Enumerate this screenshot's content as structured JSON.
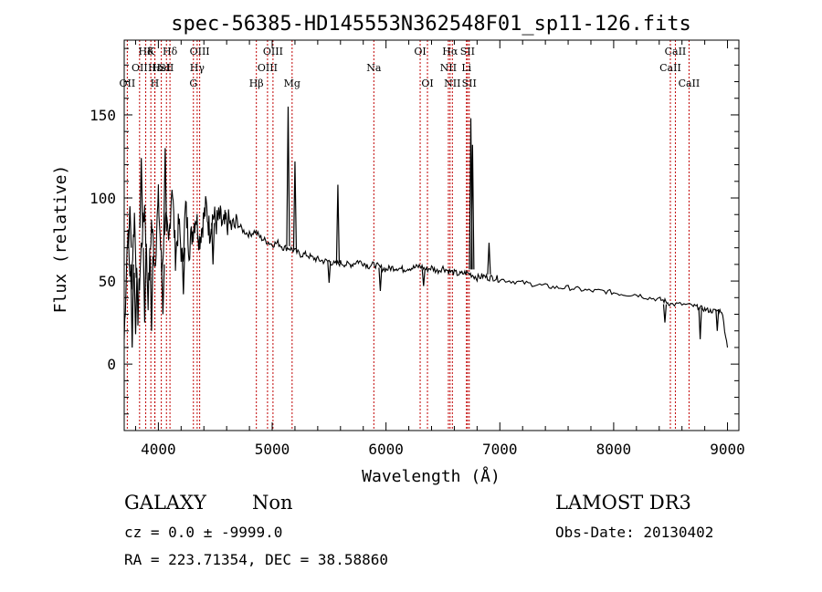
{
  "chart_data": {
    "type": "line",
    "title": "spec-56385-HD145553N362548F01_sp11-126.fits",
    "xlabel": "Wavelength (Å)",
    "ylabel": "Flux (relative)",
    "xlim": [
      3700,
      9100
    ],
    "ylim": [
      -40,
      195
    ],
    "xticks": [
      4000,
      5000,
      6000,
      7000,
      8000,
      9000
    ],
    "yticks": [
      0,
      50,
      100,
      150
    ],
    "grid": false,
    "series": [
      {
        "name": "flux",
        "x": [
          3700,
          3730,
          3760,
          3790,
          3820,
          3850,
          3880,
          3910,
          3940,
          3970,
          4000,
          4030,
          4060,
          4090,
          4120,
          4150,
          4180,
          4210,
          4240,
          4270,
          4300,
          4330,
          4360,
          4390,
          4420,
          4450,
          4480,
          4510,
          4540,
          4570,
          4600,
          4650,
          4700,
          4750,
          4800,
          4850,
          4900,
          4950,
          5000,
          5050,
          5100,
          5150,
          5200,
          5250,
          5300,
          5350,
          5400,
          5450,
          5500,
          5550,
          5600,
          5650,
          5700,
          5750,
          5800,
          5850,
          5900,
          5950,
          6000,
          6050,
          6100,
          6150,
          6200,
          6250,
          6300,
          6350,
          6400,
          6450,
          6500,
          6550,
          6600,
          6650,
          6700,
          6750,
          6800,
          6850,
          6900,
          6950,
          7000,
          7100,
          7200,
          7300,
          7400,
          7500,
          7600,
          7700,
          7800,
          7900,
          8000,
          8100,
          8200,
          8300,
          8400,
          8450,
          8500,
          8600,
          8700,
          8750,
          8800,
          8850,
          8900,
          8950,
          9000
        ],
        "values": [
          15,
          80,
          45,
          90,
          30,
          70,
          95,
          40,
          85,
          60,
          100,
          55,
          90,
          70,
          110,
          65,
          85,
          60,
          95,
          70,
          80,
          90,
          75,
          85,
          95,
          80,
          90,
          85,
          88,
          82,
          86,
          82,
          84,
          80,
          78,
          80,
          76,
          74,
          72,
          73,
          70,
          70,
          68,
          66,
          66,
          64,
          63,
          62,
          62,
          60,
          61,
          60,
          60,
          62,
          61,
          59,
          60,
          58,
          57,
          58,
          58,
          57,
          58,
          58,
          59,
          57,
          58,
          56,
          58,
          56,
          55,
          54,
          55,
          54,
          52,
          53,
          52,
          52,
          51,
          50,
          49,
          48,
          47,
          46,
          46,
          45,
          44,
          44,
          43,
          42,
          42,
          40,
          39,
          38,
          36,
          36,
          35,
          34,
          33,
          32,
          32,
          32,
          10
        ]
      }
    ],
    "spikes": [
      {
        "x": 3750,
        "peak": 95,
        "base": 70
      },
      {
        "x": 3850,
        "peak": 124,
        "base": 82
      },
      {
        "x": 4060,
        "peak": 130,
        "base": 80
      },
      {
        "x": 5140,
        "peak": 155,
        "base": 71
      },
      {
        "x": 5200,
        "peak": 122,
        "base": 69
      },
      {
        "x": 5577,
        "peak": 108,
        "base": 61
      },
      {
        "x": 6745,
        "peak": 148,
        "base": 57
      },
      {
        "x": 6760,
        "peak": 132,
        "base": 57
      },
      {
        "x": 6905,
        "peak": 73,
        "base": 54
      }
    ],
    "dips": [
      {
        "x": 3770,
        "low": 10,
        "base": 60
      },
      {
        "x": 3800,
        "low": 18,
        "base": 55
      },
      {
        "x": 3880,
        "low": 25,
        "base": 70
      },
      {
        "x": 3940,
        "low": 20,
        "base": 65
      },
      {
        "x": 4040,
        "low": 30,
        "base": 60
      },
      {
        "x": 4220,
        "low": 42,
        "base": 70
      },
      {
        "x": 4480,
        "low": 60,
        "base": 85
      },
      {
        "x": 5500,
        "low": 49,
        "base": 62
      },
      {
        "x": 5950,
        "low": 44,
        "base": 58
      },
      {
        "x": 6330,
        "low": 47,
        "base": 57
      },
      {
        "x": 8450,
        "low": 25,
        "base": 36
      },
      {
        "x": 8760,
        "low": 15,
        "base": 34
      },
      {
        "x": 8910,
        "low": 20,
        "base": 33
      }
    ],
    "lines": [
      {
        "x": 3727,
        "label": "OII",
        "row": 2
      },
      {
        "x": 3835,
        "label": "OII",
        "row": 1
      },
      {
        "x": 3889,
        "label": "Hδ",
        "row": 0
      },
      {
        "x": 3970,
        "label": "Hε",
        "row": 1
      },
      {
        "x": 3934,
        "label": "K",
        "row": 0
      },
      {
        "x": 3968,
        "label": "H",
        "row": 2
      },
      {
        "x": 4026,
        "label": "HeI",
        "row": 1
      },
      {
        "x": 4071,
        "label": "SII",
        "row": 1
      },
      {
        "x": 4102,
        "label": "Hδ",
        "row": 0
      },
      {
        "x": 4308,
        "label": "G",
        "row": 2
      },
      {
        "x": 4341,
        "label": "Hγ",
        "row": 1
      },
      {
        "x": 4363,
        "label": "OIII",
        "row": 0
      },
      {
        "x": 4861,
        "label": "Hβ",
        "row": 2
      },
      {
        "x": 4959,
        "label": "OIII",
        "row": 1
      },
      {
        "x": 5007,
        "label": "OIII",
        "row": 0
      },
      {
        "x": 5175,
        "label": "Mg",
        "row": 2
      },
      {
        "x": 5893,
        "label": "Na",
        "row": 1
      },
      {
        "x": 6300,
        "label": "OI",
        "row": 0
      },
      {
        "x": 6364,
        "label": "OI",
        "row": 2
      },
      {
        "x": 6548,
        "label": "NII",
        "row": 1
      },
      {
        "x": 6563,
        "label": "Hα",
        "row": 0
      },
      {
        "x": 6583,
        "label": "NII",
        "row": 2
      },
      {
        "x": 6707,
        "label": "Li",
        "row": 1
      },
      {
        "x": 6716,
        "label": "SII",
        "row": 0
      },
      {
        "x": 6731,
        "label": "SII",
        "row": 2
      },
      {
        "x": 8498,
        "label": "CaII",
        "row": 1
      },
      {
        "x": 8542,
        "label": "CaII",
        "row": 0
      },
      {
        "x": 8662,
        "label": "CaII",
        "row": 2
      }
    ]
  },
  "info": {
    "class": "GALAXY",
    "subclass": "Non",
    "survey": "LAMOST DR3",
    "cz": "cz = 0.0 ± -9999.0",
    "obs_date": "Obs-Date: 20130402",
    "coords": "RA = 223.71354, DEC =  38.58860"
  }
}
